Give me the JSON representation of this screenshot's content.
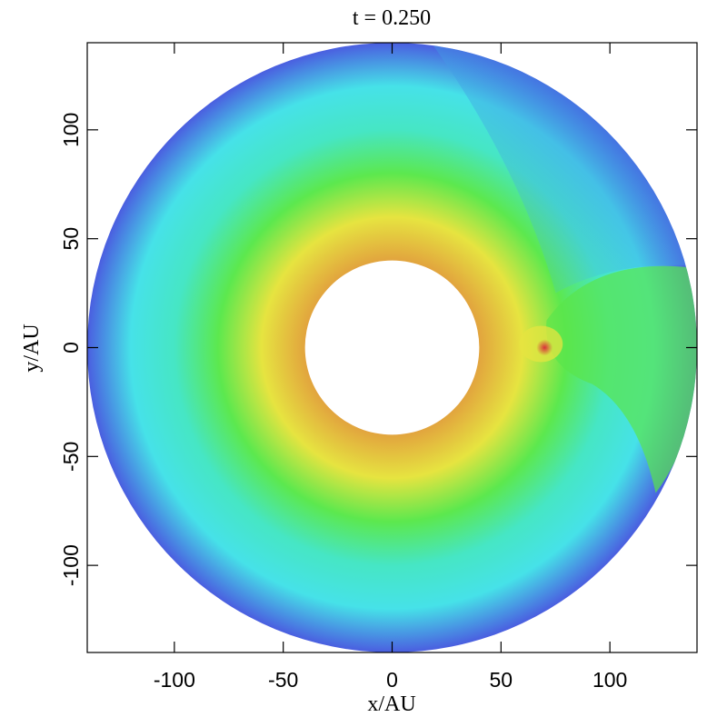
{
  "chart_data": {
    "type": "disk-map",
    "title": "t = 0.250",
    "xlabel": "x/AU",
    "ylabel": "y/AU",
    "xlim": [
      -140,
      140
    ],
    "ylim": [
      -140,
      140
    ],
    "xticks": [
      -100,
      -50,
      0,
      50,
      100
    ],
    "yticks": [
      -100,
      -50,
      0,
      50,
      100
    ],
    "disk": {
      "inner_radius": 40,
      "outer_radius": 140
    },
    "planet": {
      "x": 70,
      "y": 0
    },
    "colors": [
      "#e2a43e",
      "#e6e440",
      "#5ce84e",
      "#46e6c4",
      "#46e2e8",
      "#4a5ee0"
    ],
    "planet_color": "#d8303a"
  }
}
